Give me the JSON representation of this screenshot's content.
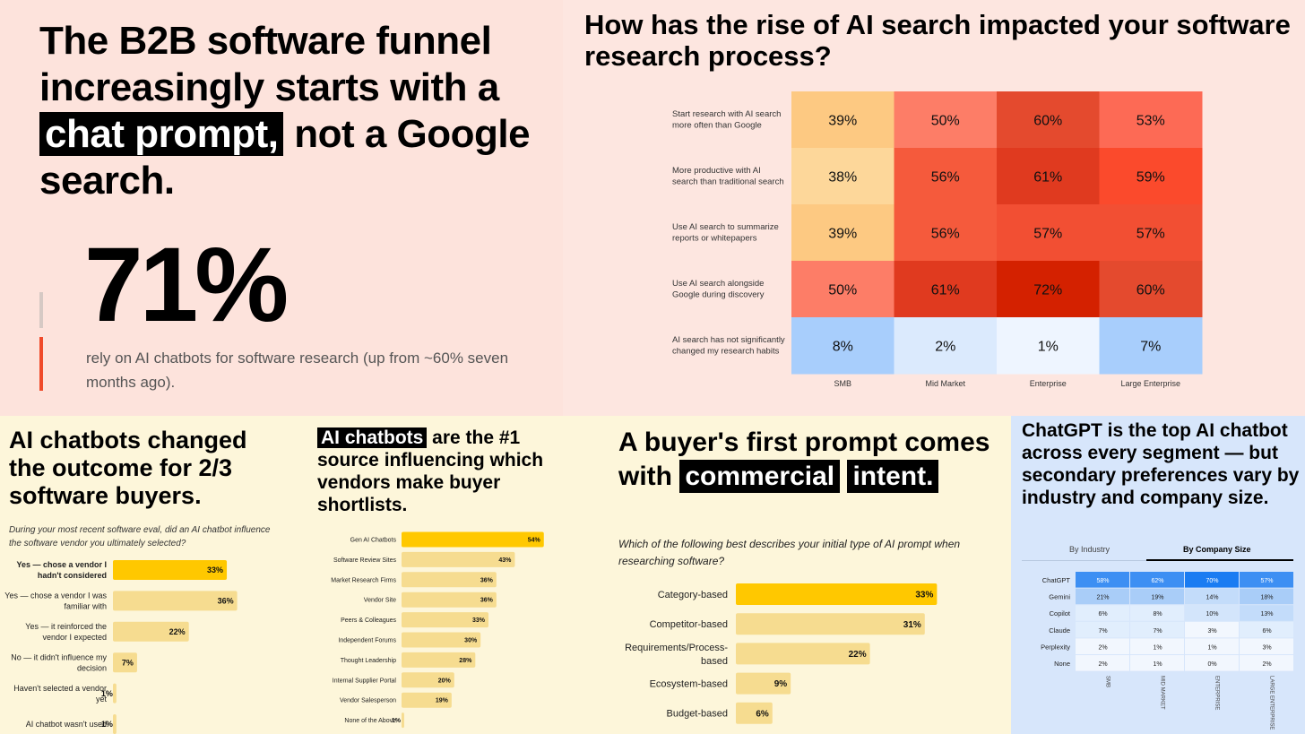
{
  "panel1": {
    "headline_a": "The B2B software funnel increasingly starts with a",
    "headline_hl": "chat prompt,",
    "headline_b": "not a Google search.",
    "big_number": "71%",
    "caption": "rely on AI chatbots for software research (up from ~60% seven months ago)."
  },
  "panel2": {
    "title": "How has the rise of AI search impacted your software research process?"
  },
  "panel3": {
    "title": "AI chatbots changed the outcome for 2/3 software buyers.",
    "question": "During your most recent software eval, did an AI chatbot influence the software vendor you ultimately selected?"
  },
  "panel4": {
    "title_hl": "AI chatbots",
    "title_rest": " are the #1 source influencing which vendors make buyer shortlists."
  },
  "panel5": {
    "title_a": "A buyer's first prompt comes with",
    "title_hl1": "commercial",
    "title_hl2": "intent.",
    "question": "Which of the following best describes your initial type of AI prompt when researching software?"
  },
  "panel6": {
    "title": "ChatGPT is the top AI chatbot across every segment — but secondary preferences vary by industry and company size.",
    "tab_industry": "By Industry",
    "tab_company": "By Company Size"
  },
  "colors": {
    "yellow": "#ffc800",
    "light_yellow": "#f6dc90",
    "red": "#f04a2a"
  },
  "chart_data": [
    {
      "id": "heatmap-ai-search",
      "type": "heatmap",
      "columns": [
        "SMB",
        "Mid Market",
        "Enterprise",
        "Large Enterprise"
      ],
      "rows": [
        {
          "label": [
            "Start research with AI search",
            "more often than Google"
          ],
          "values": [
            39,
            50,
            60,
            53
          ]
        },
        {
          "label": [
            "More productive with AI",
            "search than traditional search"
          ],
          "values": [
            38,
            56,
            61,
            59
          ]
        },
        {
          "label": [
            "Use AI search to summarize",
            "reports or whitepapers"
          ],
          "values": [
            39,
            56,
            57,
            57
          ]
        },
        {
          "label": [
            "Use AI search alongside",
            "Google during discovery"
          ],
          "values": [
            50,
            61,
            72,
            60
          ]
        },
        {
          "label": [
            "AI search has not significantly",
            "changed my research habits"
          ],
          "values": [
            8,
            2,
            1,
            7
          ]
        }
      ]
    },
    {
      "id": "bar-outcome",
      "type": "bar",
      "orientation": "horizontal",
      "categories": [
        [
          "Yes — chose a vendor I",
          "hadn't considered"
        ],
        [
          "Yes — chose a vendor I was",
          "familiar with"
        ],
        [
          "Yes — it reinforced the",
          "vendor I expected"
        ],
        [
          "No — it didn't influence my",
          "decision"
        ],
        [
          "Haven't selected a vendor",
          "yet"
        ],
        [
          "AI chatbot wasn't used"
        ]
      ],
      "values": [
        33,
        36,
        22,
        7,
        1,
        1
      ],
      "highlight_index": 0
    },
    {
      "id": "bar-sources",
      "type": "bar",
      "orientation": "horizontal",
      "categories": [
        "Gen AI Chatbots",
        "Software Review Sites",
        "Market Research Firms",
        "Vendor Site",
        "Peers & Colleagues",
        "Independent Forums",
        "Thought Leadership",
        "Internal Supplier Portal",
        "Vendor Salesperson",
        "None of the Above"
      ],
      "values": [
        54,
        43,
        36,
        36,
        33,
        30,
        28,
        20,
        19,
        1
      ],
      "highlight_index": 0
    },
    {
      "id": "bar-prompt-type",
      "type": "bar",
      "orientation": "horizontal",
      "categories": [
        [
          "Category-based"
        ],
        [
          "Competitor-based"
        ],
        [
          "Requirements/Process-",
          "based"
        ],
        [
          "Ecosystem-based"
        ],
        [
          "Budget-based"
        ]
      ],
      "values": [
        33,
        31,
        22,
        9,
        6
      ],
      "highlight_index": 0
    },
    {
      "id": "table-chatbots",
      "type": "table",
      "columns": [
        "SMB",
        "MID MARKET",
        "ENTERPRISE",
        "LARGE ENTERPRISE"
      ],
      "rows": [
        {
          "label": "ChatGPT",
          "values": [
            58,
            62,
            70,
            57
          ]
        },
        {
          "label": "Gemini",
          "values": [
            21,
            19,
            14,
            18
          ]
        },
        {
          "label": "Copilot",
          "values": [
            6,
            8,
            10,
            13
          ]
        },
        {
          "label": "Claude",
          "values": [
            7,
            7,
            3,
            6
          ]
        },
        {
          "label": "Perplexity",
          "values": [
            2,
            1,
            1,
            3
          ]
        },
        {
          "label": "None",
          "values": [
            2,
            1,
            0,
            2
          ]
        }
      ]
    }
  ]
}
